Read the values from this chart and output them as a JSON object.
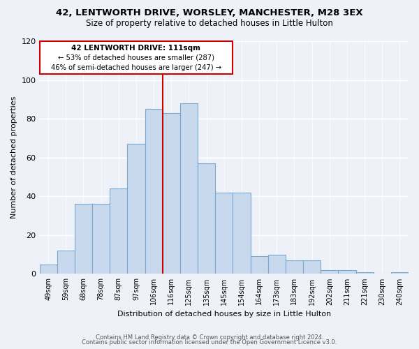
{
  "title": "42, LENTWORTH DRIVE, WORSLEY, MANCHESTER, M28 3EX",
  "subtitle": "Size of property relative to detached houses in Little Hulton",
  "xlabel": "Distribution of detached houses by size in Little Hulton",
  "ylabel": "Number of detached properties",
  "categories": [
    "49sqm",
    "59sqm",
    "68sqm",
    "78sqm",
    "87sqm",
    "97sqm",
    "106sqm",
    "116sqm",
    "125sqm",
    "135sqm",
    "145sqm",
    "154sqm",
    "164sqm",
    "173sqm",
    "183sqm",
    "192sqm",
    "202sqm",
    "211sqm",
    "221sqm",
    "230sqm",
    "240sqm"
  ],
  "bar_values": [
    5,
    12,
    36,
    36,
    44,
    67,
    85,
    83,
    88,
    57,
    42,
    42,
    9,
    10,
    7,
    7,
    2,
    2,
    1,
    0,
    1
  ],
  "bar_color": "#c8d9ee",
  "bar_edgecolor": "#7aa8cc",
  "property_line_color": "#cc0000",
  "annotation_title": "42 LENTWORTH DRIVE: 111sqm",
  "annotation_line1": "← 53% of detached houses are smaller (287)",
  "annotation_line2": "46% of semi-detached houses are larger (247) →",
  "annotation_box_color": "#cc0000",
  "ylim": [
    0,
    120
  ],
  "yticks": [
    0,
    20,
    40,
    60,
    80,
    100,
    120
  ],
  "footer1": "Contains HM Land Registry data © Crown copyright and database right 2024.",
  "footer2": "Contains public sector information licensed under the Open Government Licence v3.0.",
  "background_color": "#eef2f8"
}
